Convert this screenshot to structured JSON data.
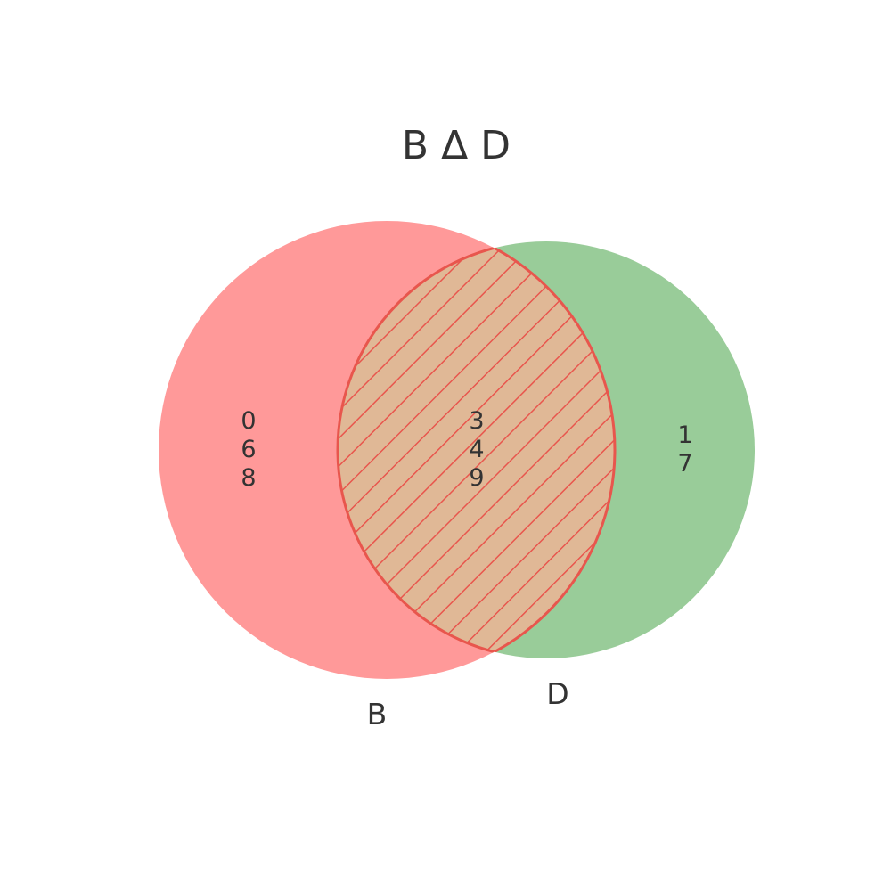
{
  "title": "B Δ D",
  "sets": {
    "left": {
      "label": "B",
      "color": "#ff9999",
      "only_elements": [
        "0",
        "6",
        "8"
      ]
    },
    "right": {
      "label": "D",
      "color": "#99cc99",
      "only_elements": [
        "1",
        "7"
      ]
    }
  },
  "intersection": {
    "elements": [
      "3",
      "4",
      "9"
    ],
    "fill_color": "#e0b896",
    "hatch_color": "#e8564d"
  }
}
